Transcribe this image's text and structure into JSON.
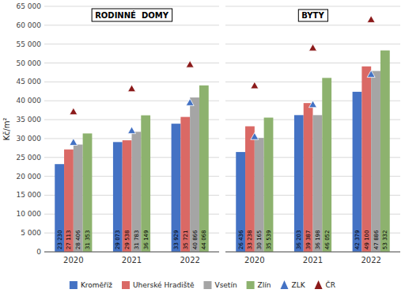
{
  "chart_data": [
    {
      "type": "bar",
      "title": "RODINNÉ  DOMY",
      "ylabel": "Kč/m²",
      "categories": [
        "2020",
        "2021",
        "2022"
      ],
      "series": [
        {
          "name": "Kroměříž",
          "color": "#4472C4",
          "values": [
            23230,
            29073,
            33929
          ],
          "value_labels": [
            "23 230",
            "29 073",
            "33 929"
          ]
        },
        {
          "name": "Uherské Hradiště",
          "color": "#DA6965",
          "values": [
            27113,
            29538,
            35721
          ],
          "value_labels": [
            "27 113",
            "29 538",
            "35 721"
          ]
        },
        {
          "name": "Vsetín",
          "color": "#A5A5A5",
          "values": [
            28406,
            31783,
            40866
          ],
          "value_labels": [
            "28 406",
            "31 783",
            "40 866"
          ]
        },
        {
          "name": "Zlín",
          "color": "#8DB26E",
          "values": [
            31353,
            36149,
            44068
          ],
          "value_labels": [
            "31 353",
            "36 149",
            "44 068"
          ]
        },
        {
          "name": "ZLK",
          "type": "scatter",
          "marker": "triangle",
          "color": "#4472C4",
          "values": [
            29000,
            32100,
            39500
          ]
        },
        {
          "name": "ČR",
          "type": "scatter",
          "marker": "triangle",
          "color": "#8B1A1A",
          "values": [
            37100,
            43200,
            49600
          ]
        }
      ],
      "ylim": [
        0,
        65000
      ],
      "yticks": [
        0,
        {
          "value": 5000,
          "label": "5 000"
        },
        {
          "value": 10000,
          "label": "10 000"
        },
        {
          "value": 15000,
          "label": "15 000"
        },
        {
          "value": 20000,
          "label": "20 000"
        },
        {
          "value": 25000,
          "label": "25 000"
        },
        {
          "value": 30000,
          "label": "30 000"
        },
        {
          "value": 35000,
          "label": "35 000"
        },
        {
          "value": 40000,
          "label": "40 000"
        },
        {
          "value": 45000,
          "label": "45 000"
        },
        {
          "value": 50000,
          "label": "50 000"
        },
        {
          "value": 55000,
          "label": "55 000"
        },
        {
          "value": 60000,
          "label": "60 000"
        },
        {
          "value": 65000,
          "label": "65 000"
        }
      ],
      "grid": true,
      "data_labels": true,
      "legend": "bottom"
    },
    {
      "type": "bar",
      "title": "BYTY",
      "categories": [
        "2020",
        "2021",
        "2022"
      ],
      "series": [
        {
          "name": "Kroměříž",
          "color": "#4472C4",
          "values": [
            26436,
            36203,
            42379
          ],
          "value_labels": [
            "26 436",
            "36 203",
            "42 379"
          ]
        },
        {
          "name": "Uherské Hradiště",
          "color": "#DA6965",
          "values": [
            33238,
            39387,
            49100
          ],
          "value_labels": [
            "33 238",
            "39 387",
            "49 100"
          ]
        },
        {
          "name": "Vsetín",
          "color": "#A5A5A5",
          "values": [
            30165,
            36198,
            47886
          ],
          "value_labels": [
            "30 165",
            "36 198",
            "47 886"
          ]
        },
        {
          "name": "Zlín",
          "color": "#8DB26E",
          "values": [
            35539,
            46052,
            53332
          ],
          "value_labels": [
            "35 539",
            "46 052",
            "53 332"
          ]
        },
        {
          "name": "ZLK",
          "type": "scatter",
          "marker": "triangle",
          "color": "#4472C4",
          "values": [
            30500,
            39000,
            47000
          ]
        },
        {
          "name": "ČR",
          "type": "scatter",
          "marker": "triangle",
          "color": "#8B1A1A",
          "values": [
            44000,
            54000,
            61500
          ]
        }
      ],
      "ylim": [
        0,
        65000
      ],
      "yticks": [
        0,
        5000,
        10000,
        15000,
        20000,
        25000,
        30000,
        35000,
        40000,
        45000,
        50000,
        55000,
        60000,
        65000
      ],
      "grid": true,
      "data_labels": true,
      "tick_labels": "x"
    }
  ]
}
